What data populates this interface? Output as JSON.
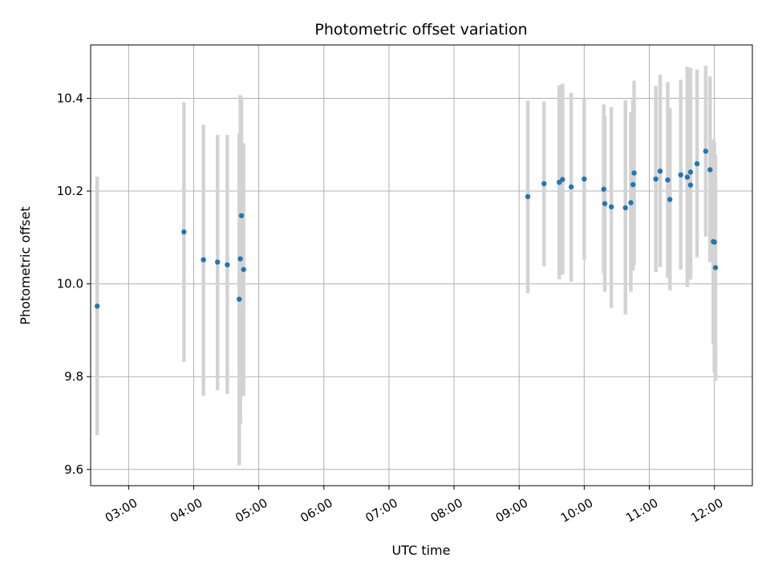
{
  "chart_data": {
    "type": "scatter",
    "title": "Photometric offset variation",
    "xlabel": "UTC time",
    "ylabel": "Photometric offset",
    "xlim": [
      "02:25",
      "12:35"
    ],
    "ylim": [
      9.565,
      10.515
    ],
    "x_ticks": [
      "03:00",
      "04:00",
      "05:00",
      "06:00",
      "07:00",
      "08:00",
      "09:00",
      "10:00",
      "11:00",
      "12:00"
    ],
    "y_ticks": [
      "9.6",
      "9.8",
      "10.0",
      "10.2",
      "10.4"
    ],
    "grid": true,
    "point_color": "#1f77b4",
    "errorbar_color": "#d3d3d3",
    "points": [
      {
        "t": "02:31",
        "y": 9.952,
        "lo": 9.674,
        "hi": 10.231
      },
      {
        "t": "03:51",
        "y": 10.112,
        "lo": 9.832,
        "hi": 10.391
      },
      {
        "t": "04:09",
        "y": 10.052,
        "lo": 9.759,
        "hi": 10.343
      },
      {
        "t": "04:22",
        "y": 10.047,
        "lo": 9.771,
        "hi": 10.321
      },
      {
        "t": "04:31",
        "y": 10.041,
        "lo": 9.763,
        "hi": 10.321
      },
      {
        "t": "04:42",
        "y": 9.967,
        "lo": 9.609,
        "hi": 10.324
      },
      {
        "t": "04:43",
        "y": 10.054,
        "lo": 9.698,
        "hi": 10.407
      },
      {
        "t": "04:44",
        "y": 10.147,
        "lo": 9.893,
        "hi": 10.402
      },
      {
        "t": "04:46",
        "y": 10.031,
        "lo": 9.759,
        "hi": 10.303
      },
      {
        "t": "09:08",
        "y": 10.188,
        "lo": 9.98,
        "hi": 10.395
      },
      {
        "t": "09:23",
        "y": 10.216,
        "lo": 10.038,
        "hi": 10.393
      },
      {
        "t": "09:37",
        "y": 10.219,
        "lo": 10.01,
        "hi": 10.428
      },
      {
        "t": "09:40",
        "y": 10.225,
        "lo": 10.02,
        "hi": 10.431
      },
      {
        "t": "09:48",
        "y": 10.209,
        "lo": 10.005,
        "hi": 10.412
      },
      {
        "t": "10:00",
        "y": 10.226,
        "lo": 10.052,
        "hi": 10.4
      },
      {
        "t": "10:18",
        "y": 10.204,
        "lo": 10.023,
        "hi": 10.387
      },
      {
        "t": "10:19",
        "y": 10.173,
        "lo": 9.983,
        "hi": 10.362
      },
      {
        "t": "10:25",
        "y": 10.166,
        "lo": 9.948,
        "hi": 10.381
      },
      {
        "t": "10:38",
        "y": 10.164,
        "lo": 9.934,
        "hi": 10.396
      },
      {
        "t": "10:43",
        "y": 10.175,
        "lo": 9.983,
        "hi": 10.37
      },
      {
        "t": "10:45",
        "y": 10.214,
        "lo": 10.029,
        "hi": 10.399
      },
      {
        "t": "10:46",
        "y": 10.239,
        "lo": 10.04,
        "hi": 10.438
      },
      {
        "t": "11:06",
        "y": 10.226,
        "lo": 10.025,
        "hi": 10.427
      },
      {
        "t": "11:10",
        "y": 10.243,
        "lo": 10.036,
        "hi": 10.451
      },
      {
        "t": "11:17",
        "y": 10.224,
        "lo": 10.013,
        "hi": 10.435
      },
      {
        "t": "11:19",
        "y": 10.182,
        "lo": 9.986,
        "hi": 10.379
      },
      {
        "t": "11:29",
        "y": 10.235,
        "lo": 10.031,
        "hi": 10.44
      },
      {
        "t": "11:35",
        "y": 10.23,
        "lo": 9.993,
        "hi": 10.468
      },
      {
        "t": "11:38",
        "y": 10.213,
        "lo": 10.009,
        "hi": 10.418
      },
      {
        "t": "11:38",
        "y": 10.241,
        "lo": 10.013,
        "hi": 10.466
      },
      {
        "t": "11:44",
        "y": 10.259,
        "lo": 10.057,
        "hi": 10.462
      },
      {
        "t": "11:52",
        "y": 10.286,
        "lo": 10.102,
        "hi": 10.47
      },
      {
        "t": "11:56",
        "y": 10.246,
        "lo": 10.047,
        "hi": 10.447
      },
      {
        "t": "11:59",
        "y": 10.091,
        "lo": 9.87,
        "hi": 10.312
      },
      {
        "t": "12:00",
        "y": 10.09,
        "lo": 9.809,
        "hi": 10.306
      },
      {
        "t": "12:01",
        "y": 10.035,
        "lo": 9.791,
        "hi": 10.278
      }
    ]
  }
}
